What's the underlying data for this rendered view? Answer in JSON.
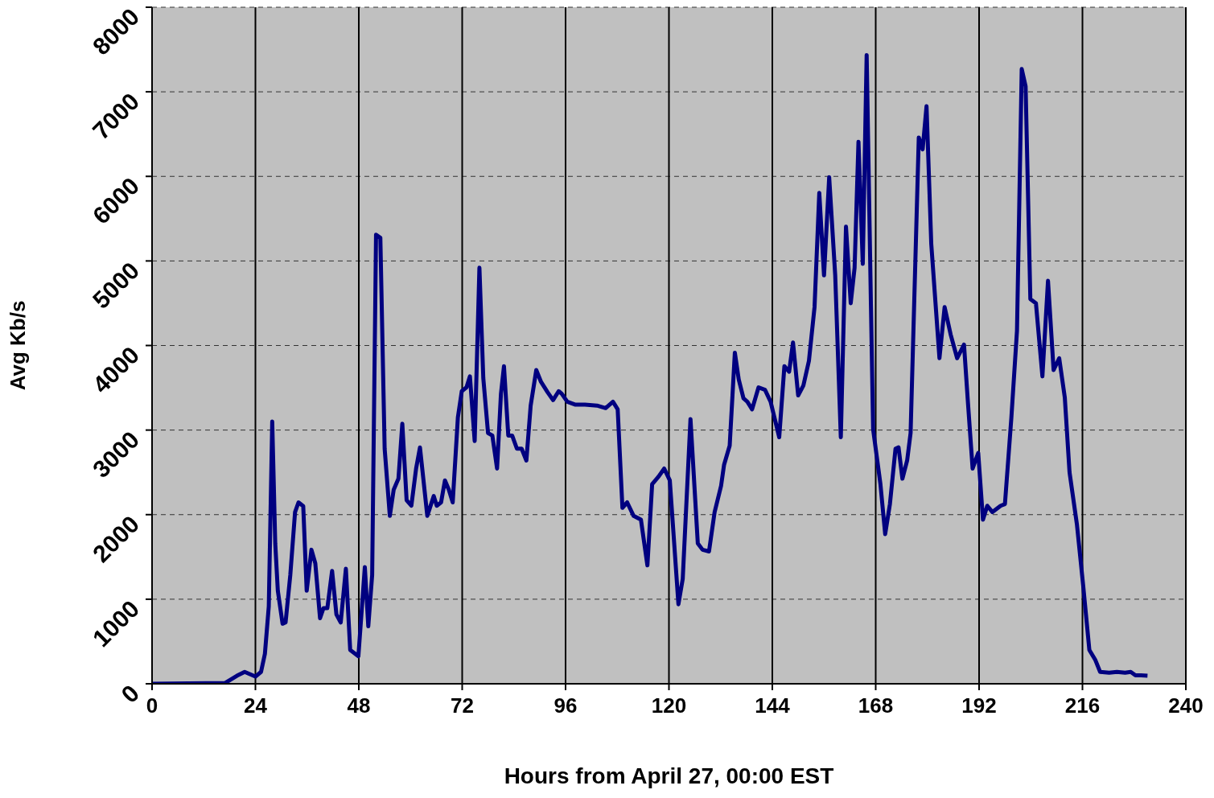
{
  "chart_data": {
    "type": "line",
    "xlabel": "Hours from April 27, 00:00 EST",
    "ylabel": "Avg Kb/s",
    "xlim": [
      0,
      240
    ],
    "xticks": [
      0,
      24,
      48,
      72,
      96,
      120,
      144,
      168,
      192,
      216,
      240
    ],
    "ylim": [
      0,
      8000
    ],
    "yticks": [
      0,
      1000,
      2000,
      3000,
      4000,
      5000,
      6000,
      7000,
      8000
    ],
    "grid": true,
    "marker": "none",
    "line_style": "solid",
    "series": [
      {
        "color": "#000080",
        "x": [
          0,
          17,
          19.7,
          21.5,
          24,
          25.3,
          26.2,
          27.1,
          27.9,
          28.6,
          29.2,
          30.3,
          31,
          32.1,
          33.2,
          34,
          35.1,
          35.9,
          37,
          37.9,
          39,
          39.8,
          40.7,
          41.8,
          42.8,
          43.8,
          45,
          46,
          47.9,
          49.4,
          50.2,
          51.1,
          52,
          53,
          54,
          55.2,
          56.1,
          57.2,
          58.1,
          59.1,
          60.2,
          61.3,
          62.2,
          63.9,
          65.4,
          66.1,
          67.1,
          68,
          68.9,
          69.8,
          71,
          71.9,
          73,
          73.8,
          74.9,
          76,
          76.9,
          78,
          79,
          80.1,
          81,
          81.7,
          82.7,
          83.6,
          84.7,
          85.8,
          86.9,
          87.9,
          89.2,
          90.3,
          91.8,
          93.1,
          94.4,
          95.1,
          96.4,
          98.3,
          100.5,
          103.3,
          105.3,
          107,
          108.1,
          109.2,
          110.3,
          111.8,
          113.5,
          115,
          116.1,
          117.6,
          118.9,
          120.2,
          122.2,
          123.2,
          125,
          126.7,
          127.8,
          129.3,
          130.6,
          132.1,
          132.8,
          134.1,
          135.3,
          136.2,
          137.3,
          138.2,
          139.3,
          140.8,
          142.3,
          143.6,
          144.7,
          145.6,
          146.8,
          147.9,
          148.8,
          150,
          151.2,
          152.5,
          153.8,
          154.9,
          156,
          157.2,
          158.6,
          159.9,
          161.1,
          162.2,
          163.1,
          164,
          165,
          165.9,
          166.9,
          167.4,
          169.1,
          170.2,
          171.3,
          172.6,
          173.3,
          174.2,
          175.3,
          176.1,
          178,
          178.9,
          179.8,
          180.9,
          182.8,
          184,
          185.4,
          186.9,
          188.5,
          189.4,
          190.5,
          191.8,
          192.9,
          193.9,
          195.1,
          197,
          198,
          199.5,
          200.8,
          201.9,
          202.8,
          203.9,
          205.2,
          206.7,
          208,
          209.3,
          210.6,
          211.9,
          213,
          214.7,
          216.2,
          217.6,
          219,
          220.1,
          222.2,
          224,
          225.9,
          227.2,
          228.3,
          229.6,
          231.1
        ],
        "values": [
          0,
          10,
          95,
          140,
          85,
          140,
          355,
          915,
          3100,
          1660,
          1100,
          710,
          725,
          1290,
          2030,
          2145,
          2100,
          1100,
          1585,
          1425,
          775,
          895,
          895,
          1335,
          820,
          725,
          1360,
          400,
          325,
          1380,
          680,
          1285,
          5310,
          5275,
          2780,
          1985,
          2295,
          2425,
          3075,
          2170,
          2105,
          2545,
          2795,
          1985,
          2220,
          2105,
          2145,
          2405,
          2295,
          2145,
          3150,
          3460,
          3505,
          3635,
          2870,
          4920,
          3615,
          2965,
          2935,
          2545,
          3430,
          3755,
          2935,
          2935,
          2780,
          2780,
          2640,
          3290,
          3710,
          3570,
          3450,
          3355,
          3460,
          3430,
          3335,
          3300,
          3300,
          3290,
          3260,
          3335,
          3245,
          2080,
          2145,
          1985,
          1940,
          1400,
          2360,
          2450,
          2545,
          2405,
          940,
          1240,
          3130,
          1660,
          1585,
          1565,
          2030,
          2340,
          2590,
          2815,
          3915,
          3600,
          3375,
          3335,
          3245,
          3505,
          3475,
          3335,
          3105,
          2915,
          3755,
          3690,
          4035,
          3410,
          3525,
          3820,
          4455,
          5805,
          4830,
          5990,
          4830,
          2915,
          5405,
          4500,
          4920,
          6410,
          4965,
          7435,
          4455,
          3010,
          2360,
          1770,
          2125,
          2780,
          2795,
          2425,
          2640,
          2965,
          6460,
          6320,
          6830,
          5200,
          3850,
          4455,
          4130,
          3850,
          4010,
          3335,
          2545,
          2730,
          1940,
          2105,
          2030,
          2105,
          2125,
          3150,
          4175,
          7270,
          7065,
          4550,
          4500,
          3635,
          4765,
          3710,
          3850,
          3385,
          2500,
          1890,
          1145,
          400,
          280,
          140,
          130,
          140,
          130,
          140,
          100,
          100,
          95
        ]
      }
    ]
  }
}
